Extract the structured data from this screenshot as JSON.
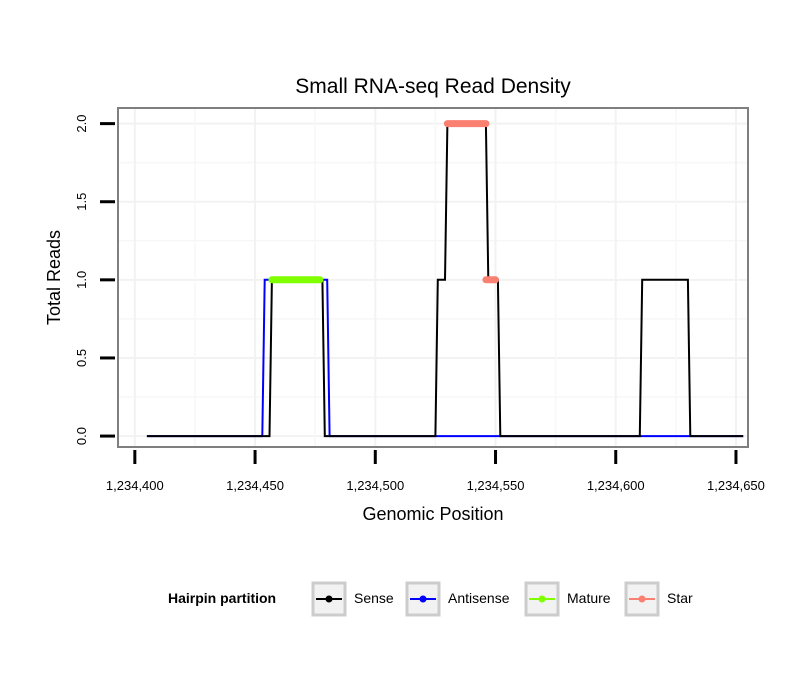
{
  "chart_data": {
    "type": "line",
    "title": "Small RNA-seq Read Density",
    "xlabel": "Genomic Position",
    "ylabel": "Total Reads",
    "xlim": [
      1234393,
      1234655
    ],
    "ylim": [
      -0.07,
      2.1
    ],
    "xticks": [
      1234400,
      1234450,
      1234500,
      1234550,
      1234600,
      1234650
    ],
    "xtick_labels": [
      "1,234,400",
      "1,234,450",
      "1,234,500",
      "1,234,550",
      "1,234,600",
      "1,234,650"
    ],
    "yticks": [
      0,
      0.5,
      1,
      1.5,
      2
    ],
    "ytick_labels": [
      "0.0",
      "0.5",
      "1.0",
      "1.5",
      "2.0"
    ],
    "grid": true,
    "legend": {
      "title": "Hairpin partition",
      "position": "bottom",
      "entries": [
        {
          "name": "Sense",
          "color": "#000000"
        },
        {
          "name": "Antisense",
          "color": "#0000FF"
        },
        {
          "name": "Mature",
          "color": "#7FFF00"
        },
        {
          "name": "Star",
          "color": "#FA8072"
        }
      ]
    },
    "series": [
      {
        "name": "Sense",
        "color": "#000000",
        "x": [
          1234405,
          1234456,
          1234457,
          1234478,
          1234479,
          1234525,
          1234526,
          1234529,
          1234530,
          1234546,
          1234547,
          1234551,
          1234552,
          1234610,
          1234611,
          1234630,
          1234631,
          1234653
        ],
        "y": [
          0,
          0,
          1,
          1,
          0,
          0,
          1,
          1,
          2,
          2,
          1,
          1,
          0,
          0,
          1,
          1,
          0,
          0
        ]
      },
      {
        "name": "Antisense",
        "color": "#0000FF",
        "x": [
          1234405,
          1234453,
          1234454,
          1234480,
          1234481,
          1234525,
          1234551,
          1234610,
          1234631,
          1234653
        ],
        "y": [
          0,
          0,
          1,
          1,
          0,
          0,
          0,
          0,
          0,
          0
        ]
      },
      {
        "name": "Mature",
        "color": "#7FFF00",
        "x": [
          1234457,
          1234477
        ],
        "y": [
          1,
          1
        ]
      },
      {
        "name": "Star",
        "color": "#FA8072",
        "segments": [
          {
            "x": [
              1234530,
              1234546
            ],
            "y": [
              2,
              2
            ]
          },
          {
            "x": [
              1234546,
              1234550
            ],
            "y": [
              1,
              1
            ]
          }
        ]
      }
    ]
  }
}
